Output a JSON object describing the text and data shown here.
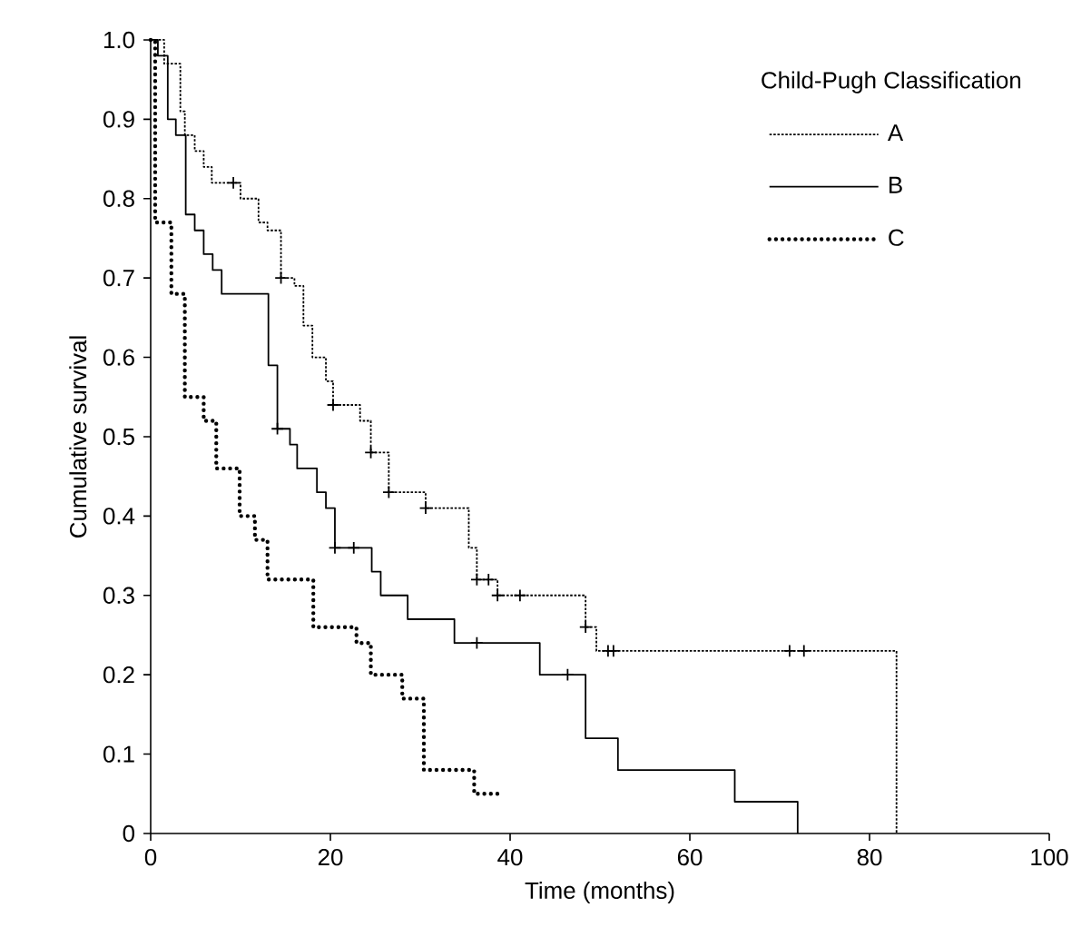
{
  "chart_data": {
    "type": "step",
    "xlabel": "Time (months)",
    "ylabel": "Cumulative survival",
    "legend_title": "Child-Pugh Classification",
    "legend": "top right",
    "xlim": [
      0,
      100
    ],
    "xticks": [
      0,
      20,
      40,
      60,
      80,
      100
    ],
    "ylim": [
      0,
      1
    ],
    "yticks": [
      0,
      0.1,
      0.2,
      0.3,
      0.4,
      0.5,
      0.6,
      0.7,
      0.8,
      0.9,
      {
        "value": 1,
        "label": "1.0"
      }
    ],
    "series": [
      {
        "name": "A",
        "color": "#000000",
        "line_style": "dashed",
        "x": [
          0,
          1.5,
          3.3,
          3.8,
          4.9,
          5.9,
          6.8,
          10,
          12,
          13,
          14.5,
          16,
          17,
          18,
          19.5,
          20.3,
          23.3,
          24.5,
          26.5,
          30.6,
          35.4,
          36.3,
          38.6,
          48.4,
          49.6,
          83
        ],
        "values": [
          1,
          0.97,
          0.91,
          0.88,
          0.86,
          0.84,
          0.82,
          0.8,
          0.77,
          0.76,
          0.7,
          0.69,
          0.64,
          0.6,
          0.57,
          0.54,
          0.52,
          0.48,
          0.43,
          0.41,
          0.36,
          0.32,
          0.3,
          0.26,
          0.23,
          0
        ]
      },
      {
        "name": "B",
        "color": "#000000",
        "line_style": "solid",
        "x": [
          0,
          0.8,
          1.9,
          2.8,
          3.9,
          4.9,
          5.9,
          6.9,
          7.9,
          13.1,
          14.1,
          15.5,
          16.3,
          18.5,
          19.5,
          20.5,
          24.6,
          25.6,
          28.6,
          33.8,
          43.3,
          48.4,
          52,
          65,
          72
        ],
        "values": [
          1,
          0.98,
          0.9,
          0.88,
          0.78,
          0.76,
          0.73,
          0.71,
          0.68,
          0.59,
          0.51,
          0.49,
          0.46,
          0.43,
          0.41,
          0.36,
          0.33,
          0.3,
          0.27,
          0.24,
          0.2,
          0.12,
          0.08,
          0.04,
          0
        ]
      },
      {
        "name": "C",
        "color": "#000000",
        "line_style": "dotted",
        "x": [
          0,
          0.5,
          2.3,
          3.8,
          5.9,
          7.3,
          9.9,
          11.6,
          13,
          18.1,
          22.9,
          24.5,
          28,
          30.4,
          36,
          39
        ],
        "values": [
          1,
          0.77,
          0.68,
          0.55,
          0.52,
          0.46,
          0.4,
          0.37,
          0.32,
          0.26,
          0.24,
          0.2,
          0.17,
          0.08,
          0.05,
          0.05
        ]
      },
      {
        "type": "scatter",
        "marker": "cross",
        "color": "#000000",
        "x": [
          9.2,
          14.5,
          20.3,
          24.5,
          26.5,
          30.6,
          36.3,
          37.6,
          38.6,
          41.1,
          48.4,
          50.9,
          51.5,
          71.1,
          72.7
        ],
        "values": [
          0.82,
          0.7,
          0.54,
          0.48,
          0.43,
          0.41,
          0.32,
          0.32,
          0.3,
          0.3,
          0.26,
          0.23,
          0.23,
          0.23,
          0.23
        ]
      },
      {
        "type": "scatter",
        "marker": "cross",
        "color": "#000000",
        "x": [
          14.1,
          20.5,
          22.6,
          36.3,
          46.4
        ],
        "values": [
          0.51,
          0.36,
          0.36,
          0.24,
          0.2
        ]
      }
    ]
  }
}
